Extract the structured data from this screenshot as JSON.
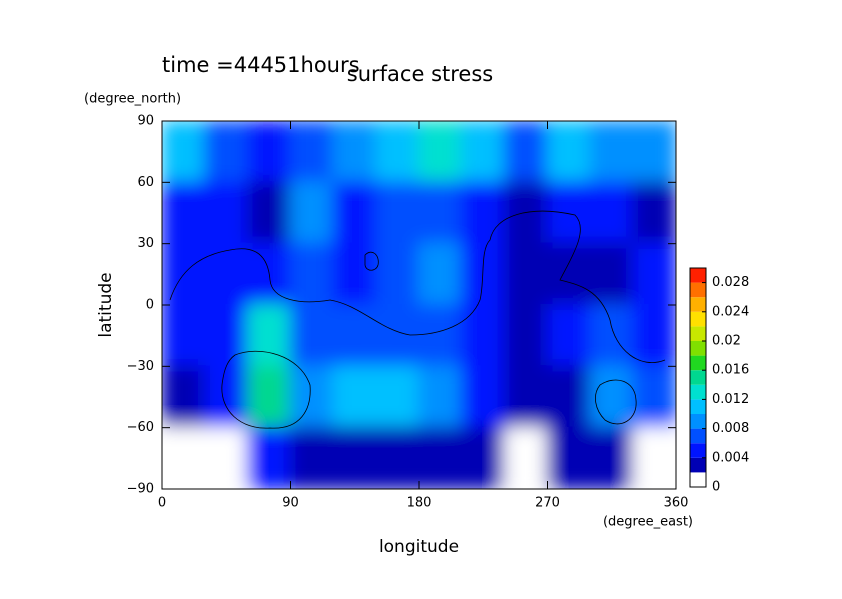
{
  "chart_data": {
    "type": "contour",
    "title": "surface stress",
    "subtitle": "time =44451hours",
    "xlabel": "longitude",
    "xunit": "(degree_east)",
    "ylabel": "latitude",
    "yunit": "(degree_north)",
    "xlim": [
      0,
      360
    ],
    "ylim": [
      -90,
      90
    ],
    "xticks": [
      0,
      90,
      180,
      270,
      360
    ],
    "yticks": [
      {
        "value": -90,
        "label": "−90"
      },
      {
        "value": -60,
        "label": "−60"
      },
      {
        "value": -30,
        "label": "−30"
      },
      0,
      30,
      60,
      90
    ],
    "x": [
      15,
      45,
      75,
      105,
      135,
      165,
      195,
      225,
      255,
      285,
      315,
      345
    ],
    "y": [
      75,
      45,
      15,
      -15,
      -45,
      -75
    ],
    "z": [
      [
        0.01,
        0.006,
        0.004,
        0.006,
        0.008,
        0.01,
        0.012,
        0.01,
        0.006,
        0.01,
        0.008,
        0.008
      ],
      [
        0.004,
        0.004,
        0.003,
        0.008,
        0.004,
        0.006,
        0.006,
        0.004,
        0.002,
        0.004,
        0.004,
        0.002
      ],
      [
        0.004,
        0.004,
        0.004,
        0.006,
        0.004,
        0.006,
        0.008,
        0.004,
        0.002,
        0.002,
        0.002,
        0.004
      ],
      [
        0.004,
        0.004,
        0.012,
        0.006,
        0.006,
        0.006,
        0.006,
        0.004,
        0.002,
        0.004,
        0.006,
        0.004
      ],
      [
        0.002,
        0.004,
        0.014,
        0.008,
        0.01,
        0.01,
        0.008,
        0.004,
        0.002,
        0.002,
        0.008,
        0.006
      ],
      [
        0,
        0,
        0.004,
        0.002,
        0.002,
        0.002,
        0.002,
        0.002,
        0.001,
        0.002,
        0.002,
        0
      ]
    ],
    "levels": [
      0,
      0.002,
      0.004,
      0.006,
      0.008,
      0.01,
      0.012,
      0.014,
      0.016,
      0.018,
      0.02,
      0.022,
      0.024,
      0.026,
      0.028,
      0.03
    ],
    "colors": [
      "#ffffff",
      "#0000b4",
      "#0014ff",
      "#0050ff",
      "#0090ff",
      "#00c0ff",
      "#00e0d0",
      "#00d890",
      "#20d820",
      "#80e000",
      "#c8e800",
      "#ffe000",
      "#ffb000",
      "#ff7000",
      "#ff2000"
    ],
    "colorbar_ticks": [
      0,
      0.004,
      0.008,
      0.012,
      0.016,
      0.02,
      0.024,
      0.028
    ]
  }
}
